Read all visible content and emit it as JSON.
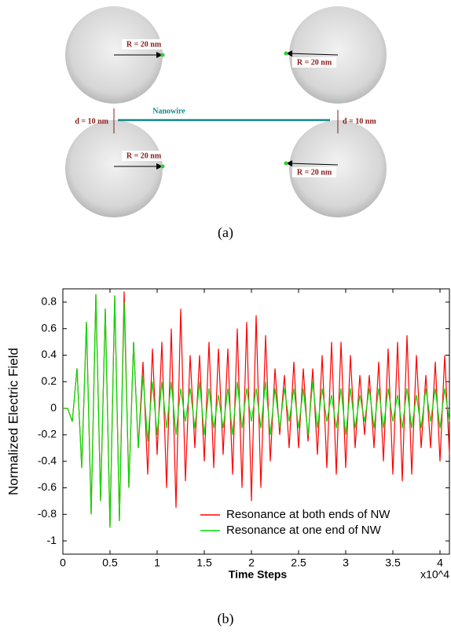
{
  "diagram": {
    "radius_labels": [
      "R = 20 nm",
      "R = 20 nm",
      "R = 20 nm",
      "R = 20 nm"
    ],
    "gap_labels": [
      "d = 10 nm",
      "d = 10 nm"
    ],
    "wire_label": "Nanowire",
    "caption": "(a)"
  },
  "chart_caption": "(b)",
  "chart_data": {
    "type": "line",
    "xlabel": "Time Steps",
    "ylabel": "Normalized Electric Field",
    "x_multiplier": "x10^4",
    "x": [
      0,
      0.05,
      0.1,
      0.15,
      0.2,
      0.25,
      0.3,
      0.35,
      0.4,
      0.45,
      0.5,
      0.55,
      0.6,
      0.65,
      0.7,
      0.75,
      0.8,
      0.85,
      0.9,
      0.95,
      1,
      1.05,
      1.1,
      1.15,
      1.2,
      1.25,
      1.3,
      1.35,
      1.4,
      1.45,
      1.5,
      1.55,
      1.6,
      1.65,
      1.7,
      1.75,
      1.8,
      1.85,
      1.9,
      1.95,
      2,
      2.05,
      2.1,
      2.15,
      2.2,
      2.25,
      2.3,
      2.35,
      2.4,
      2.45,
      2.5,
      2.55,
      2.6,
      2.65,
      2.7,
      2.75,
      2.8,
      2.85,
      2.9,
      2.95,
      3,
      3.05,
      3.1,
      3.15,
      3.2,
      3.25,
      3.3,
      3.35,
      3.4,
      3.45,
      3.5,
      3.55,
      3.6,
      3.65,
      3.7,
      3.75,
      3.8,
      3.85,
      3.9,
      3.95,
      4,
      4.05,
      4.1
    ],
    "series": [
      {
        "name": "Resonance at both ends of NW",
        "color": "#ff0000",
        "values": [
          0,
          0,
          -0.1,
          0.3,
          -0.45,
          0.65,
          -0.8,
          0.86,
          -0.7,
          0.75,
          -0.9,
          0.85,
          -0.85,
          0.88,
          -0.6,
          0.5,
          -0.3,
          0.35,
          -0.5,
          0.45,
          -0.35,
          0.5,
          -0.6,
          0.6,
          -0.75,
          0.75,
          -0.55,
          0.4,
          -0.3,
          0.4,
          -0.4,
          0.5,
          -0.45,
          0.45,
          -0.35,
          0.45,
          -0.5,
          0.6,
          -0.6,
          0.65,
          -0.7,
          0.7,
          -0.6,
          0.55,
          -0.4,
          0.3,
          -0.2,
          0.25,
          -0.3,
          0.35,
          -0.3,
          0.3,
          -0.25,
          0.3,
          -0.35,
          0.4,
          -0.45,
          0.5,
          -0.5,
          0.5,
          -0.45,
          0.4,
          -0.3,
          0.25,
          -0.2,
          0.25,
          -0.3,
          0.35,
          -0.4,
          0.45,
          -0.5,
          0.5,
          -0.55,
          0.55,
          -0.5,
          0.4,
          -0.3,
          0.25,
          -0.3,
          0.35,
          -0.4,
          0.4,
          -0.35
        ]
      },
      {
        "name": "Resonance at one end of NW",
        "color": "#00e000",
        "values": [
          0,
          0,
          -0.1,
          0.3,
          -0.45,
          0.65,
          -0.8,
          0.86,
          -0.7,
          0.75,
          -0.9,
          0.85,
          -0.85,
          0.8,
          -0.6,
          0.5,
          -0.3,
          0.25,
          -0.25,
          0.2,
          -0.2,
          0.2,
          -0.15,
          0.2,
          -0.2,
          0.15,
          -0.1,
          0.15,
          -0.15,
          0.2,
          -0.2,
          0.15,
          -0.15,
          0.1,
          -0.15,
          0.15,
          -0.2,
          0.2,
          -0.15,
          0.15,
          -0.1,
          0.15,
          -0.15,
          0.2,
          -0.2,
          0.15,
          -0.15,
          0.15,
          -0.1,
          0.15,
          -0.15,
          0.15,
          -0.2,
          0.2,
          -0.15,
          0.15,
          -0.1,
          0.1,
          -0.15,
          0.15,
          -0.2,
          0.15,
          -0.15,
          0.1,
          -0.1,
          0.15,
          -0.15,
          0.15,
          -0.15,
          0.15,
          -0.1,
          0.1,
          -0.15,
          0.15,
          -0.15,
          0.1,
          -0.15,
          0.15,
          -0.1,
          0.15,
          -0.15,
          0.15,
          -0.1
        ]
      }
    ],
    "xlim": [
      0,
      4.1
    ],
    "ylim": [
      -1.1,
      0.9
    ],
    "xticks": [
      0,
      0.5,
      1,
      1.5,
      2,
      2.5,
      3,
      3.5,
      4
    ],
    "yticks": [
      -1,
      -0.8,
      -0.6,
      -0.4,
      -0.2,
      0,
      0.2,
      0.4,
      0.6,
      0.8
    ],
    "legend": "lower right"
  }
}
